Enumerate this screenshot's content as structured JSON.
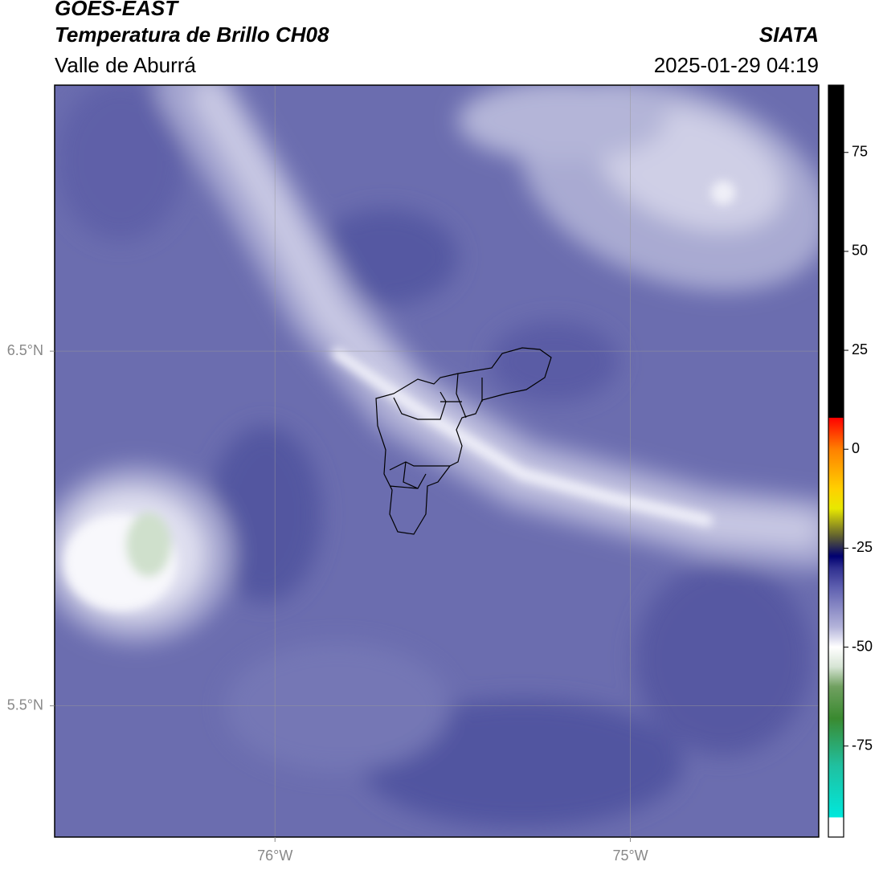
{
  "header": {
    "title": "GOES-EAST",
    "product": "Temperatura de Brillo CH08",
    "subtitle": "Valle de Aburrá",
    "source": "SIATA",
    "datetime": "2025-01-29 04:19"
  },
  "map": {
    "xlim": [
      -76.62,
      -74.47
    ],
    "ylim": [
      5.13,
      7.25
    ],
    "grid": true,
    "xticks": [
      {
        "value": -76,
        "label": "76°W"
      },
      {
        "value": -75,
        "label": "75°W"
      }
    ],
    "yticks": [
      {
        "value": 6.5,
        "label": "6.5°N"
      },
      {
        "value": 5.5,
        "label": "5.5°N"
      }
    ]
  },
  "colorbar": {
    "lim": [
      -98,
      92
    ],
    "ticks": [
      75,
      50,
      25,
      0,
      -25,
      -50,
      -75
    ],
    "stops": [
      [
        -98,
        "#ffffff"
      ],
      [
        -93,
        "#ffffff"
      ],
      [
        -93,
        "#00e8dc"
      ],
      [
        -80,
        "#20c0a0"
      ],
      [
        -68,
        "#3a8a30"
      ],
      [
        -60,
        "#70a060"
      ],
      [
        -55,
        "#d6e4d4"
      ],
      [
        -50,
        "#ffffff"
      ],
      [
        -45,
        "#b4b4da"
      ],
      [
        -35,
        "#5f60b0"
      ],
      [
        -30,
        "#303090"
      ],
      [
        -27,
        "#000070"
      ],
      [
        -22,
        "#606030"
      ],
      [
        -15,
        "#e8e800"
      ],
      [
        -10,
        "#ffd000"
      ],
      [
        0,
        "#ff8000"
      ],
      [
        8,
        "#ff0000"
      ],
      [
        8,
        "#000000"
      ],
      [
        92,
        "#000000"
      ]
    ]
  }
}
